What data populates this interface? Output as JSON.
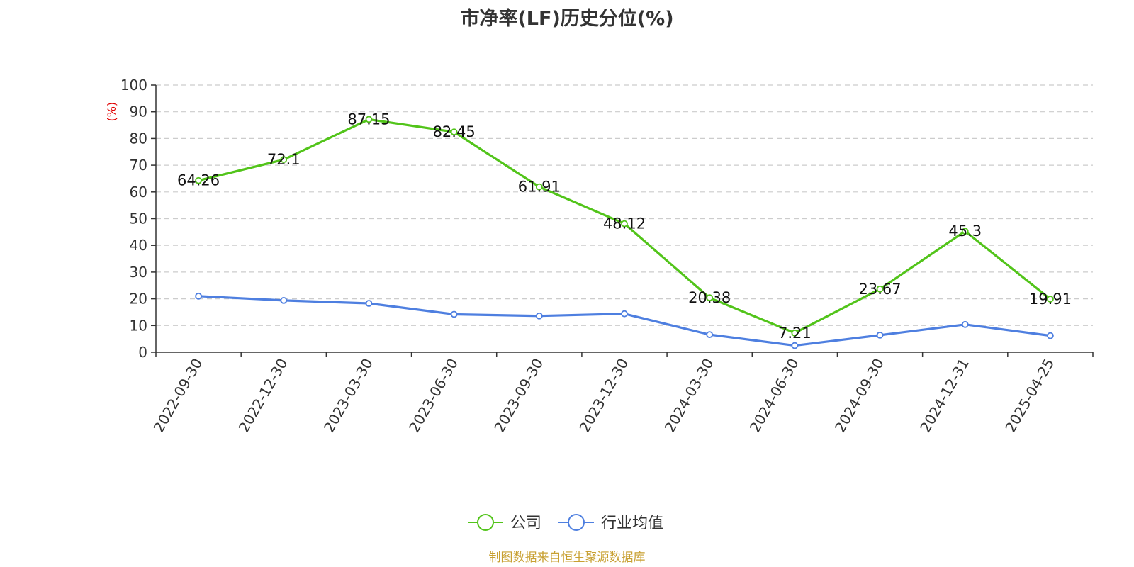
{
  "chart_data": {
    "type": "line",
    "title": "市净率(LF)历史分位(%)",
    "ylabel": "(%)",
    "xlabel": "",
    "ylim": [
      0,
      100
    ],
    "yticks": [
      0,
      10,
      20,
      30,
      40,
      50,
      60,
      70,
      80,
      90,
      100
    ],
    "grid": true,
    "legend_position": "bottom",
    "categories": [
      "2022-09-30",
      "2022-12-30",
      "2023-03-30",
      "2023-06-30",
      "2023-09-30",
      "2023-12-30",
      "2024-03-30",
      "2024-06-30",
      "2024-09-30",
      "2024-12-31",
      "2025-04-25"
    ],
    "series": [
      {
        "name": "公司",
        "color": "#52c41a",
        "values": [
          64.26,
          72.1,
          87.15,
          82.45,
          61.91,
          48.12,
          20.38,
          7.21,
          23.67,
          45.3,
          19.91
        ],
        "labels": [
          "64.26",
          "72.1",
          "87.15",
          "82.45",
          "61.91",
          "48.12",
          "20.38",
          "7.21",
          "23.67",
          "45.3",
          "19.91"
        ]
      },
      {
        "name": "行业均值",
        "color": "#4e7fe0",
        "values": [
          21.0,
          19.4,
          18.3,
          14.2,
          13.6,
          14.4,
          6.6,
          2.5,
          6.4,
          10.4,
          6.2
        ]
      }
    ]
  },
  "source_note": "制图数据来自恒生聚源数据库",
  "colors": {
    "ylabel": "#e00000",
    "source_note": "#c8a032",
    "axis": "#333333",
    "grid": "#cccccc"
  }
}
